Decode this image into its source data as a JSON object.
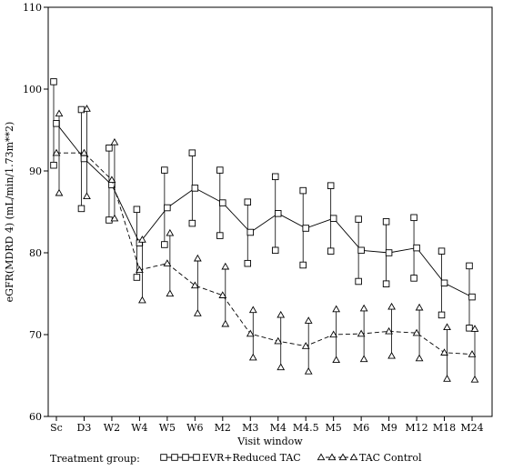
{
  "chart_data": {
    "type": "line",
    "xlabel": "Visit window",
    "ylabel": "eGFR(MDRD 4) (mL/min/1.73m**2)",
    "categories": [
      "Sc",
      "D3",
      "W2",
      "W4",
      "W5",
      "W6",
      "M2",
      "M3",
      "M4",
      "M4.5",
      "M5",
      "M6",
      "M9",
      "M12",
      "M18",
      "M24"
    ],
    "ylim": [
      60,
      110
    ],
    "yticks": [
      60,
      70,
      80,
      90,
      100,
      110
    ],
    "grid": false,
    "legend": {
      "position": "bottom",
      "title": "Treatment group:"
    },
    "series": [
      {
        "name": "EVR+Reduced TAC",
        "marker": "square",
        "line_style": "solid",
        "mean": [
          95.8,
          91.5,
          88.3,
          81.2,
          85.5,
          87.9,
          86.1,
          82.5,
          84.8,
          83.0,
          84.2,
          80.3,
          80.0,
          80.6,
          76.3,
          74.6
        ],
        "upper": [
          100.9,
          97.5,
          92.8,
          85.3,
          90.1,
          92.2,
          90.1,
          86.2,
          89.3,
          87.6,
          88.2,
          84.1,
          83.8,
          84.3,
          80.2,
          78.4
        ],
        "lower": [
          90.7,
          85.4,
          84.0,
          77.0,
          81.0,
          83.6,
          82.1,
          78.7,
          80.3,
          78.5,
          80.2,
          76.5,
          76.2,
          76.9,
          72.4,
          70.8
        ]
      },
      {
        "name": "TAC Control",
        "marker": "triangle",
        "line_style": "dashed",
        "mean": [
          92.2,
          92.2,
          88.9,
          77.9,
          78.7,
          76.0,
          74.8,
          70.1,
          69.2,
          68.6,
          70.0,
          70.1,
          70.4,
          70.2,
          67.8,
          67.6
        ],
        "upper": [
          97.0,
          97.6,
          93.5,
          81.6,
          82.4,
          79.3,
          78.3,
          73.0,
          72.4,
          71.7,
          73.1,
          73.2,
          73.4,
          73.3,
          70.9,
          70.7
        ],
        "lower": [
          87.3,
          86.9,
          84.2,
          74.2,
          75.0,
          72.6,
          71.3,
          67.2,
          66.0,
          65.5,
          66.9,
          67.0,
          67.4,
          67.1,
          64.6,
          64.5
        ]
      }
    ]
  }
}
